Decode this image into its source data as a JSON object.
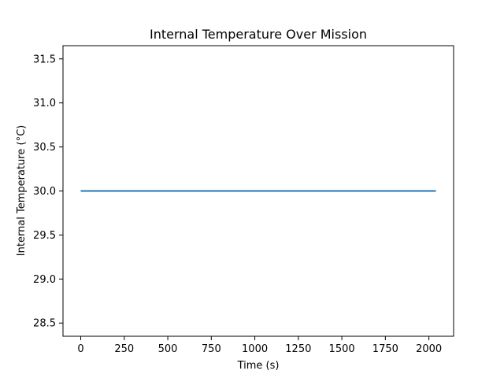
{
  "chart_data": {
    "type": "line",
    "title": "Internal Temperature Over Mission",
    "xlabel": "Time (s)",
    "ylabel": "Internal Temperature (°C)",
    "xlim": [
      -102,
      2142
    ],
    "ylim": [
      28.35,
      31.65
    ],
    "xticks": [
      0,
      250,
      500,
      750,
      1000,
      1250,
      1500,
      1750,
      2000
    ],
    "yticks": [
      28.5,
      29.0,
      29.5,
      30.0,
      30.5,
      31.0,
      31.5
    ],
    "grid": false,
    "series": [
      {
        "color": "#1f77b4",
        "x": [
          0,
          2040
        ],
        "y": [
          30.0,
          30.0
        ]
      }
    ]
  }
}
